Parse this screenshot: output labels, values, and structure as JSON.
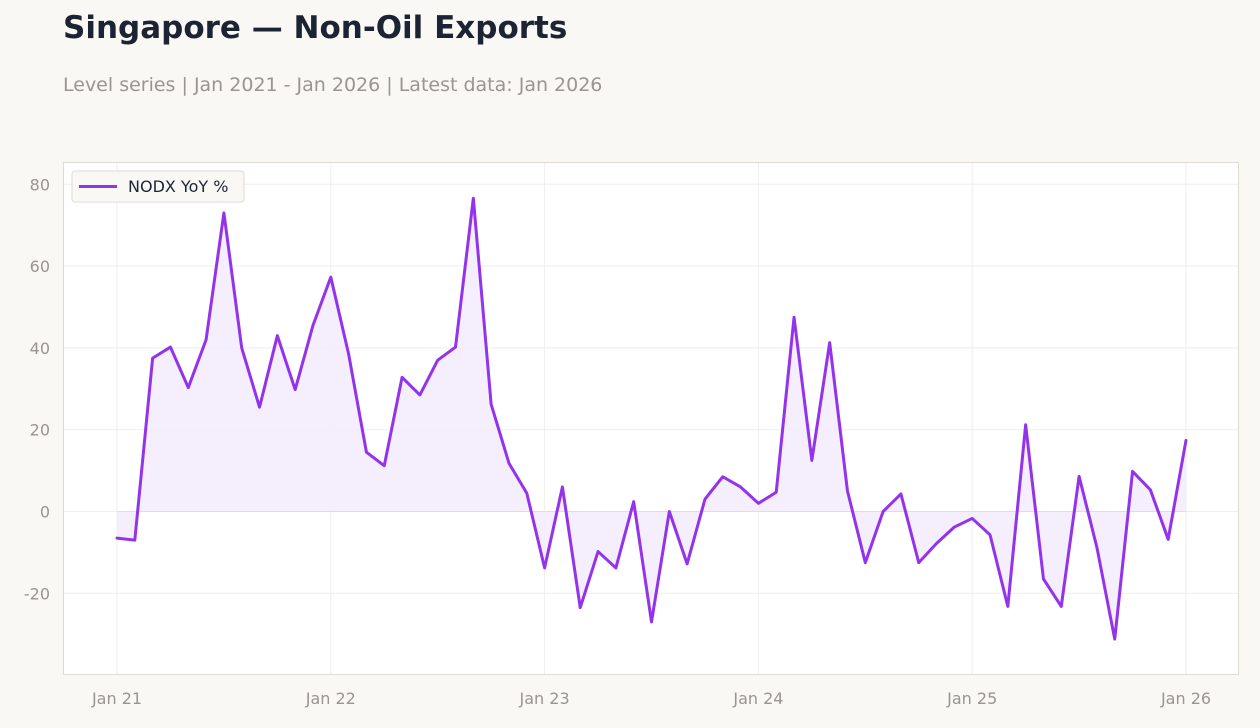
{
  "header": {
    "title": "Singapore — Non-Oil Exports",
    "subtitle": "Level series | Jan 2021 - Jan 2026 | Latest data: Jan 2026"
  },
  "colors": {
    "series": "#9333ea",
    "fill": "#f4ecfd",
    "grid": "#eeeeee",
    "axis_text": "#999590",
    "title_text": "#1c2434"
  },
  "chart_data": {
    "type": "line",
    "title": "Singapore — Non-Oil Exports",
    "subtitle": "Level series | Jan 2021 - Jan 2026 | Latest data: Jan 2026",
    "xlabel": "",
    "ylabel": "",
    "x_start": "2021-01",
    "x_end": "2026-01",
    "x_ticks": [
      "Jan 21",
      "Jan 22",
      "Jan 23",
      "Jan 24",
      "Jan 25",
      "Jan 26"
    ],
    "y_ticks": [
      80,
      60,
      40,
      20,
      0,
      -20
    ],
    "ylim": [
      -40,
      85
    ],
    "grid": true,
    "legend_position": "top-left",
    "fill_to_zero": true,
    "series": [
      {
        "name": "NODX YoY %",
        "x": [
          "2021-01",
          "2021-02",
          "2021-03",
          "2021-04",
          "2021-05",
          "2021-06",
          "2021-07",
          "2021-08",
          "2021-09",
          "2021-10",
          "2021-11",
          "2021-12",
          "2022-01",
          "2022-02",
          "2022-03",
          "2022-04",
          "2022-05",
          "2022-06",
          "2022-07",
          "2022-08",
          "2022-09",
          "2022-10",
          "2022-11",
          "2022-12",
          "2023-01",
          "2023-02",
          "2023-03",
          "2023-04",
          "2023-05",
          "2023-06",
          "2023-07",
          "2023-08",
          "2023-09",
          "2023-10",
          "2023-11",
          "2023-12",
          "2024-01",
          "2024-02",
          "2024-03",
          "2024-04",
          "2024-05",
          "2024-06",
          "2024-07",
          "2024-08",
          "2024-09",
          "2024-10",
          "2024-11",
          "2024-12",
          "2025-01",
          "2025-02",
          "2025-03",
          "2025-04",
          "2025-05",
          "2025-06",
          "2025-07",
          "2025-08",
          "2025-09",
          "2025-10",
          "2025-11",
          "2025-12",
          "2026-01"
        ],
        "values": [
          -6.5,
          -7,
          37.5,
          40.2,
          30.3,
          42,
          73,
          40,
          25.5,
          43,
          29.8,
          45.5,
          57.3,
          38.5,
          14.5,
          11.2,
          32.8,
          28.5,
          37,
          40.2,
          76.6,
          26.2,
          11.8,
          4.5,
          -13.8,
          6,
          -23.5,
          -9.8,
          -13.8,
          2.4,
          -27,
          0,
          -12.8,
          3,
          8.5,
          6,
          2,
          4.7,
          47.5,
          12.5,
          41.3,
          5,
          -12.5,
          0,
          4.3,
          -12.5,
          -7.8,
          -3.8,
          -1.7,
          -5.7,
          -23.2,
          21.2,
          -16.5,
          -23.2,
          8.6,
          -8.8,
          -31.2,
          9.8,
          5.3,
          -6.8,
          17.4
        ]
      }
    ]
  }
}
